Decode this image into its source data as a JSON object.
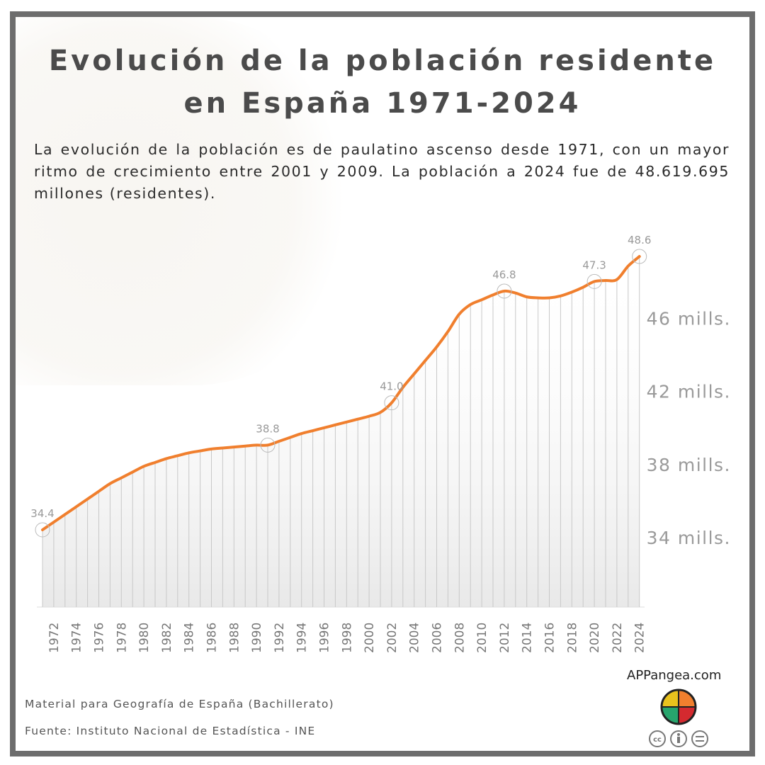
{
  "title": "Evolución de la población residente en España 1971-2024",
  "subtitle": "La evolución de la población es de paulatino ascenso desde 1971, con un mayor ritmo de crecimiento entre 2001 y 2009. La población a 2024 fue de 48.619.695 millones (residentes).",
  "footer": {
    "material": "Material para Geografía de España (Bachillerato)",
    "source": "Fuente: Instituto Nacional de Estadística - INE",
    "site": "APPangea.com",
    "license_icons": [
      "cc-icon",
      "by-icon",
      "nd-icon"
    ]
  },
  "colors": {
    "line": "#f07f2e",
    "frame": "#6d6d6d",
    "title": "#4b4b4b",
    "bars": "#c8c8c8"
  },
  "chart_data": {
    "type": "line",
    "ylabel": "",
    "xlabel": "",
    "ylim": [
      30,
      49
    ],
    "yticks": [
      {
        "value": 34,
        "label": "34 mills."
      },
      {
        "value": 38,
        "label": "38 mills."
      },
      {
        "value": 42,
        "label": "42 mills."
      },
      {
        "value": 46,
        "label": "46 mills."
      }
    ],
    "x": [
      1971,
      1972,
      1973,
      1974,
      1975,
      1976,
      1977,
      1978,
      1979,
      1980,
      1981,
      1982,
      1983,
      1984,
      1985,
      1986,
      1987,
      1988,
      1989,
      1990,
      1991,
      1992,
      1993,
      1994,
      1995,
      1996,
      1997,
      1998,
      1999,
      2000,
      2001,
      2002,
      2003,
      2004,
      2005,
      2006,
      2007,
      2008,
      2009,
      2010,
      2011,
      2012,
      2013,
      2014,
      2015,
      2016,
      2017,
      2018,
      2019,
      2020,
      2021,
      2022,
      2023,
      2024
    ],
    "values": [
      34.4,
      34.8,
      35.2,
      35.6,
      36.0,
      36.4,
      36.8,
      37.1,
      37.4,
      37.7,
      37.9,
      38.1,
      38.25,
      38.4,
      38.5,
      38.6,
      38.65,
      38.7,
      38.75,
      38.8,
      38.8,
      39.0,
      39.2,
      39.4,
      39.55,
      39.7,
      39.85,
      40.0,
      40.15,
      40.3,
      40.5,
      41.0,
      41.8,
      42.5,
      43.2,
      43.9,
      44.7,
      45.6,
      46.1,
      46.35,
      46.6,
      46.8,
      46.7,
      46.5,
      46.45,
      46.45,
      46.55,
      46.75,
      47.0,
      47.3,
      47.35,
      47.4,
      48.1,
      48.6
    ],
    "xtick_labels": [
      "1972",
      "1974",
      "1976",
      "1978",
      "1980",
      "1982",
      "1984",
      "1986",
      "1988",
      "1990",
      "1992",
      "1994",
      "1996",
      "1998",
      "2000",
      "2002",
      "2004",
      "2006",
      "2008",
      "2010",
      "2012",
      "2014",
      "2016",
      "2018",
      "2020",
      "2022",
      "2024"
    ],
    "annotations": [
      {
        "x": 1971,
        "label": "34.4"
      },
      {
        "x": 1991,
        "label": "38.8"
      },
      {
        "x": 2002,
        "label": "41.0"
      },
      {
        "x": 2012,
        "label": "46.8"
      },
      {
        "x": 2020,
        "label": "47.3"
      },
      {
        "x": 2024,
        "label": "48.6"
      }
    ],
    "grid": false,
    "legend": "none"
  }
}
